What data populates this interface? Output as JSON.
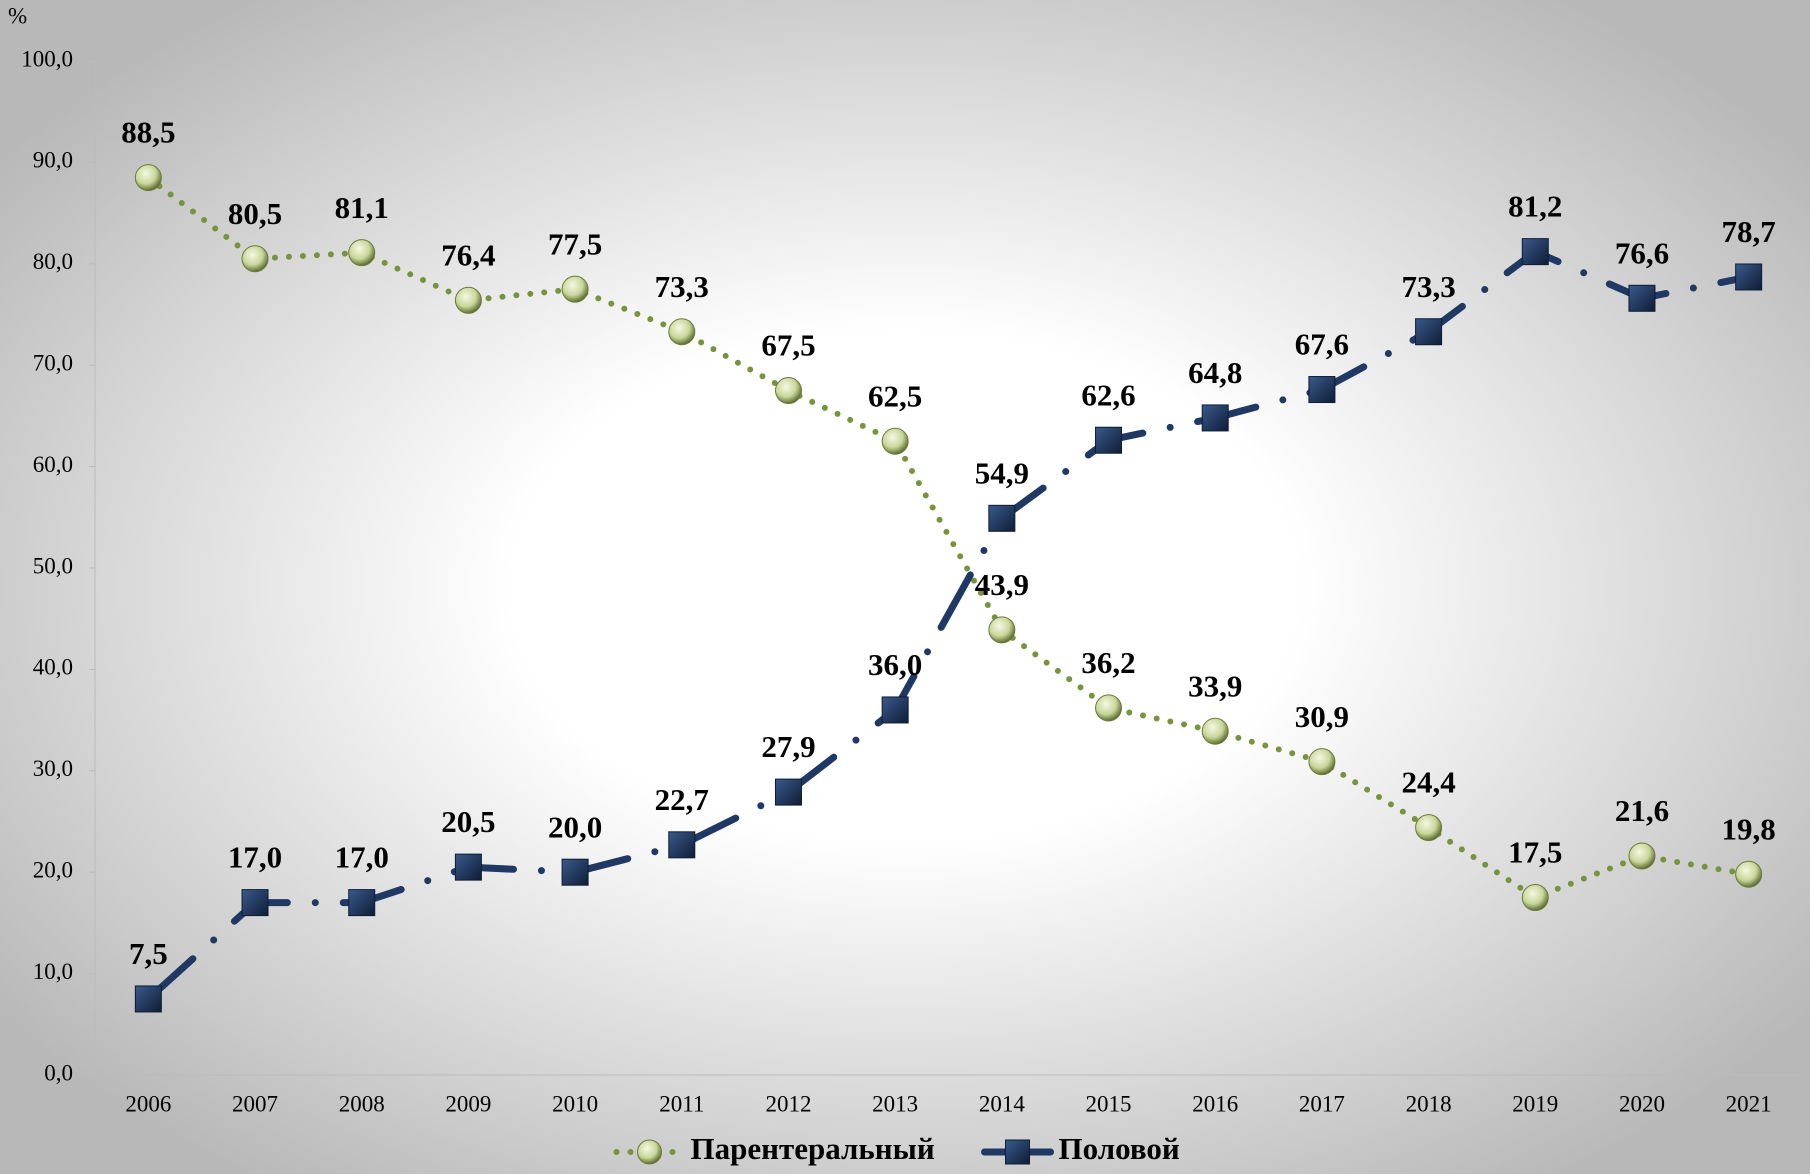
{
  "chart_data": {
    "type": "line",
    "y_label": "%",
    "categories": [
      "2006",
      "2007",
      "2008",
      "2009",
      "2010",
      "2011",
      "2012",
      "2013",
      "2014",
      "2015",
      "2016",
      "2017",
      "2018",
      "2019",
      "2020",
      "2021"
    ],
    "series": [
      {
        "name": "Парентеральный",
        "color": "#77933c",
        "marker": "circle",
        "values": [
          88.5,
          80.5,
          81.1,
          76.4,
          77.5,
          73.3,
          67.5,
          62.5,
          43.9,
          36.2,
          33.9,
          30.9,
          24.4,
          17.5,
          21.6,
          19.8
        ],
        "value_labels": [
          "88,5",
          "80,5",
          "81,1",
          "76,4",
          "77,5",
          "73,3",
          "67,5",
          "62,5",
          "43,9",
          "36,2",
          "33,9",
          "30,9",
          "24,4",
          "17,5",
          "21,6",
          "19,8"
        ]
      },
      {
        "name": "Половой",
        "color": "#1f3864",
        "marker": "square",
        "values": [
          7.5,
          17.0,
          17.0,
          20.5,
          20.0,
          22.7,
          27.9,
          36.0,
          54.9,
          62.6,
          64.8,
          67.6,
          73.3,
          81.2,
          76.6,
          78.7
        ],
        "value_labels": [
          "7,5",
          "17,0",
          "17,0",
          "20,5",
          "20,0",
          "22,7",
          "27,9",
          "36,0",
          "54,9",
          "62,6",
          "64,8",
          "67,6",
          "73,3",
          "81,2",
          "76,6",
          "78,7"
        ]
      }
    ],
    "ylim": [
      0,
      100
    ],
    "yticks": [
      {
        "value": 0,
        "label": "0,0"
      },
      {
        "value": 10,
        "label": "10,0"
      },
      {
        "value": 20,
        "label": "20,0"
      },
      {
        "value": 30,
        "label": "30,0"
      },
      {
        "value": 40,
        "label": "40,0"
      },
      {
        "value": 50,
        "label": "50,0"
      },
      {
        "value": 60,
        "label": "60,0"
      },
      {
        "value": 70,
        "label": "70,0"
      },
      {
        "value": 80,
        "label": "80,0"
      },
      {
        "value": 90,
        "label": "90,0"
      },
      {
        "value": 100,
        "label": "100,0"
      }
    ],
    "legend": "bottom"
  }
}
